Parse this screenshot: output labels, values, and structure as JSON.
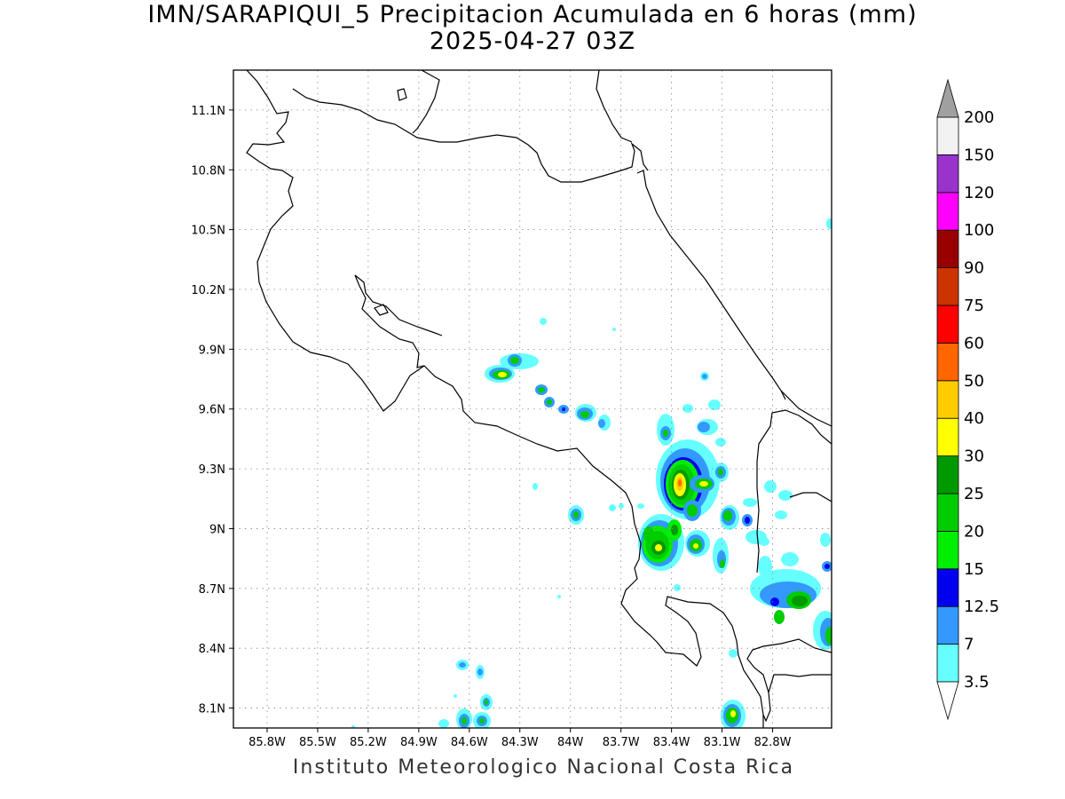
{
  "header": {
    "title": "IMN/SARAPIQUI_5 Precipitacion Acumulada en 6 horas (mm)",
    "subtitle": "2025-04-27 03Z"
  },
  "footer": {
    "credit": "Instituto Meteorologico Nacional Costa Rica"
  },
  "map": {
    "lon_range": [
      -86.0,
      -82.45
    ],
    "lat_range": [
      8.0,
      11.3
    ],
    "x_ticks": [
      "85.8W",
      "85.5W",
      "85.2W",
      "84.9W",
      "84.6W",
      "84.3W",
      "84W",
      "83.7W",
      "83.4W",
      "83.1W",
      "82.8W"
    ],
    "y_ticks": [
      "11.1N",
      "10.8N",
      "10.5N",
      "10.2N",
      "9.9N",
      "9.6N",
      "9.3N",
      "9N",
      "8.7N",
      "8.4N",
      "8.1N"
    ],
    "grid": true
  },
  "legend": {
    "levels": [
      "3.5",
      "7",
      "12.5",
      "15",
      "20",
      "25",
      "30",
      "40",
      "50",
      "60",
      "75",
      "90",
      "100",
      "120",
      "150",
      "200"
    ],
    "colors": [
      "#66ffff",
      "#3399ff",
      "#0000ee",
      "#00ee00",
      "#00cc00",
      "#009900",
      "#ffff00",
      "#ffcc00",
      "#ff6600",
      "#ff0000",
      "#cc3300",
      "#990000",
      "#ff00ff",
      "#9933cc",
      "#f2f2f2"
    ],
    "end_arrow_top_color": "#a0a0a0"
  }
}
